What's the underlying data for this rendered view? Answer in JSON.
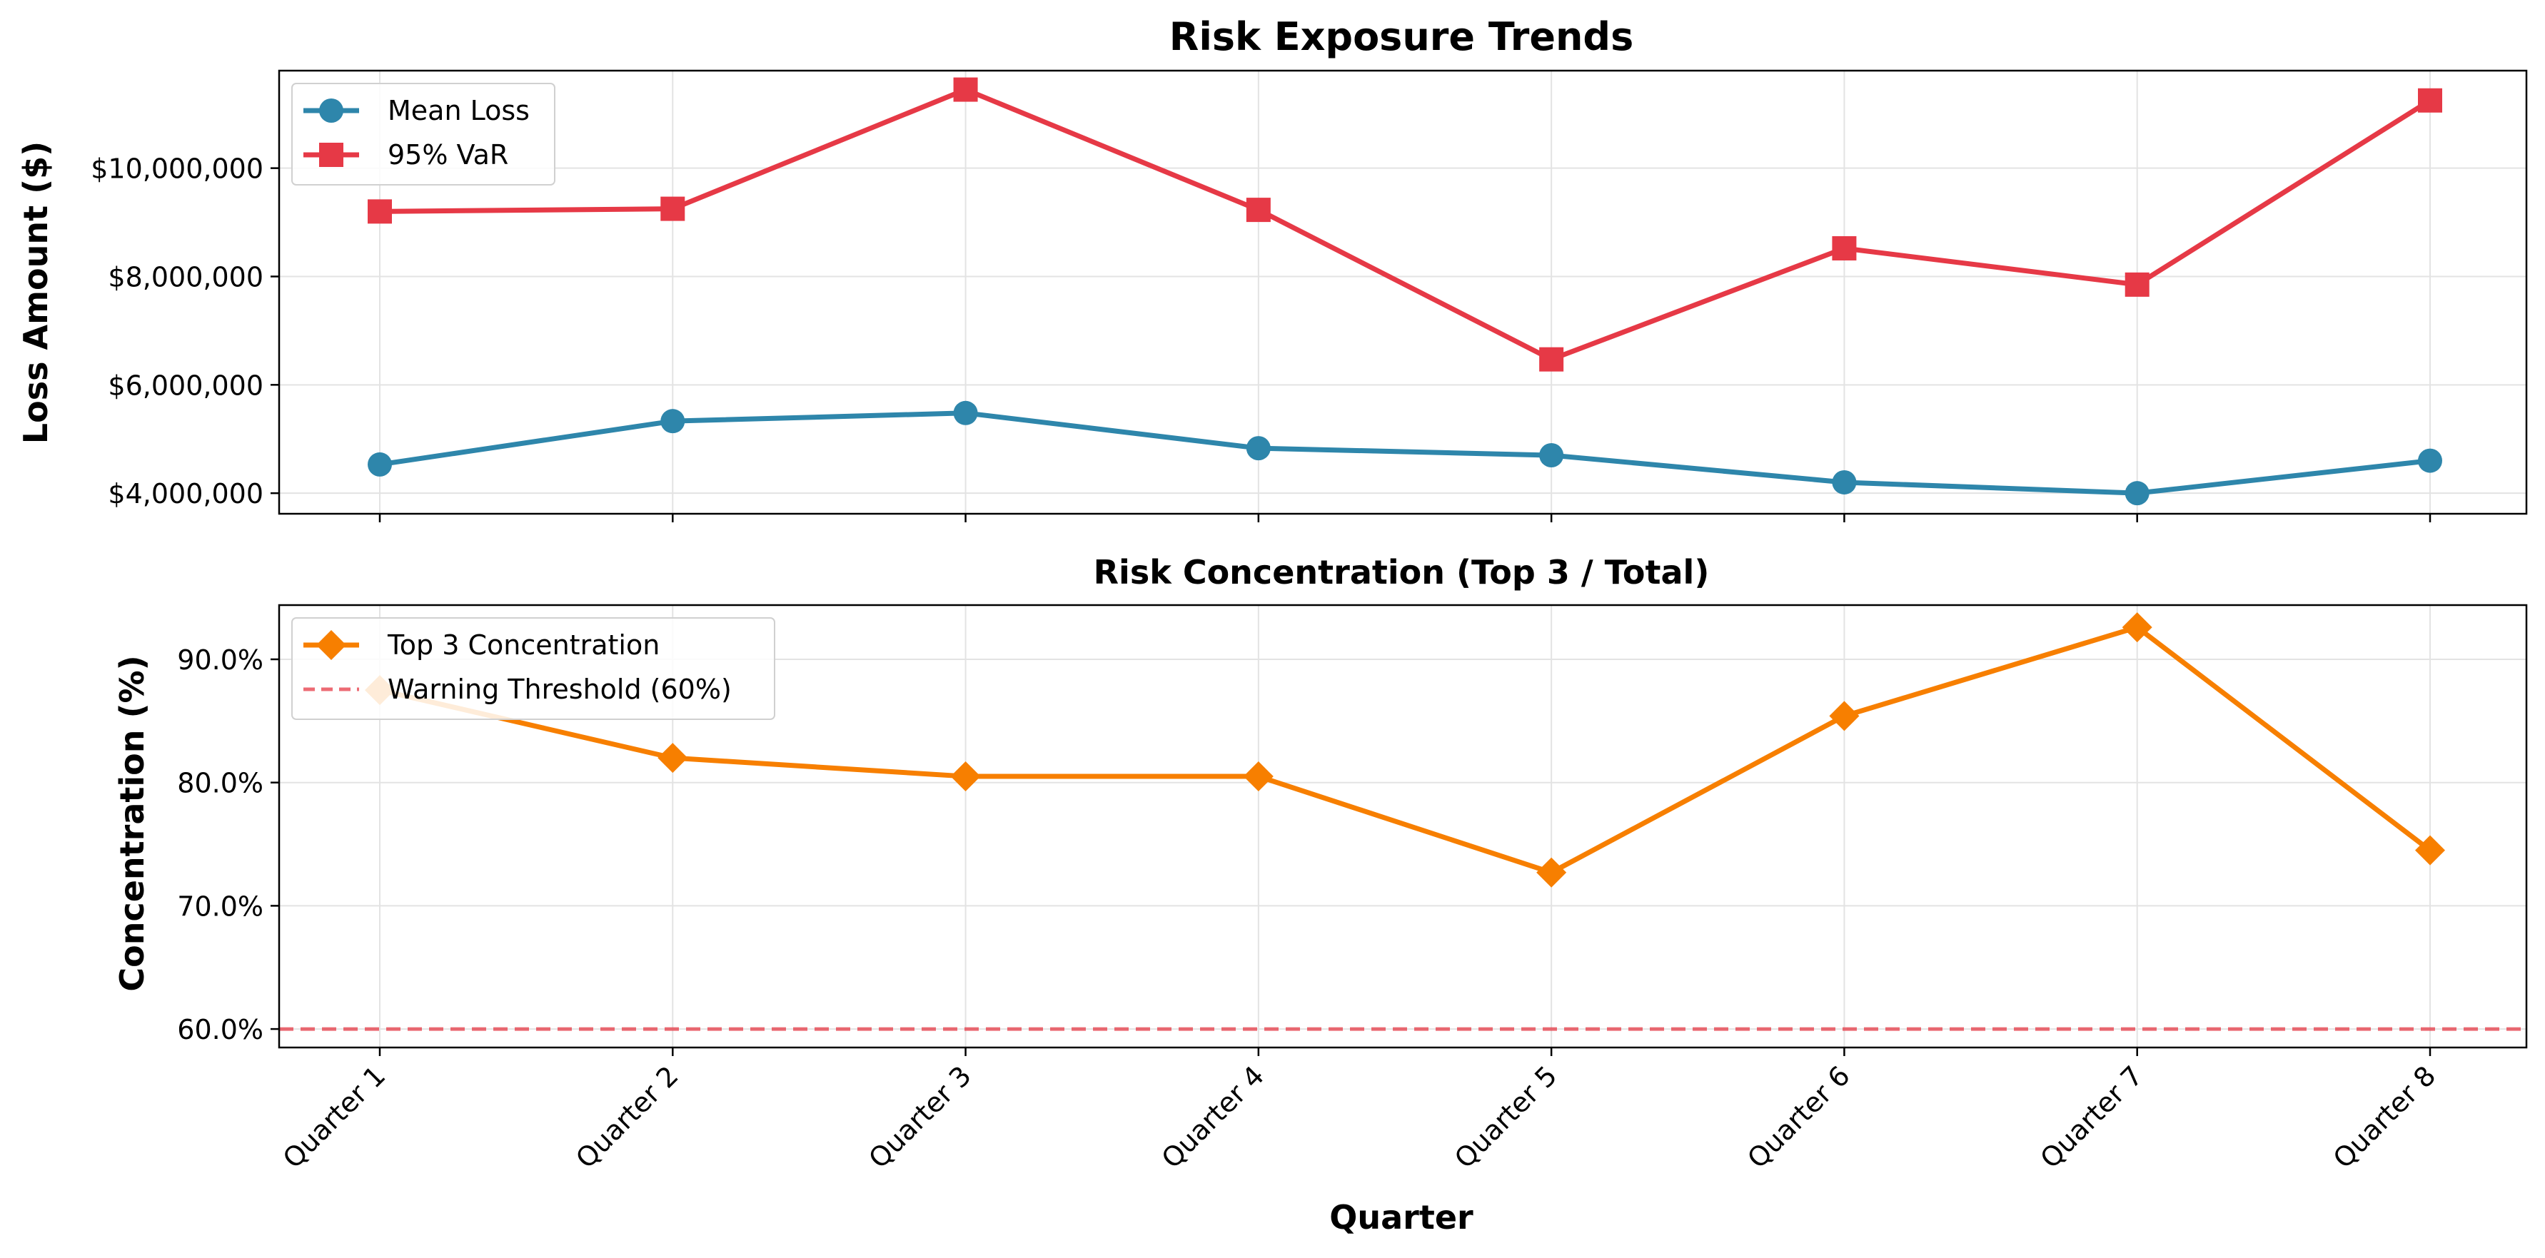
{
  "chart_data": [
    {
      "type": "line",
      "title": "Risk Exposure Trends",
      "xlabel": "",
      "ylabel": "Loss Amount ($)",
      "categories": [
        "Quarter 1",
        "Quarter 2",
        "Quarter 3",
        "Quarter 4",
        "Quarter 5",
        "Quarter 6",
        "Quarter 7",
        "Quarter 8"
      ],
      "ylim": [
        3620000,
        11800000
      ],
      "yticks": [
        4000000,
        6000000,
        8000000,
        10000000
      ],
      "ytick_labels": [
        "$4,000,000",
        "$6,000,000",
        "$8,000,000",
        "$10,000,000"
      ],
      "grid": true,
      "legend": "top-left",
      "series": [
        {
          "name": "Mean Loss",
          "color": "#2e86ab",
          "marker": "circle",
          "values": [
            4530000,
            5330000,
            5480000,
            4830000,
            4700000,
            4200000,
            4000000,
            4600000
          ]
        },
        {
          "name": "95% VaR",
          "color": "#e63946",
          "marker": "square",
          "values": [
            9200000,
            9250000,
            11450000,
            9230000,
            6470000,
            8520000,
            7850000,
            11250000
          ]
        }
      ]
    },
    {
      "type": "line",
      "title": "Risk Concentration (Top 3 / Total)",
      "xlabel": "Quarter",
      "ylabel": "Concentration (%)",
      "categories": [
        "Quarter 1",
        "Quarter 2",
        "Quarter 3",
        "Quarter 4",
        "Quarter 5",
        "Quarter 6",
        "Quarter 7",
        "Quarter 8"
      ],
      "ylim": [
        58.5,
        94.4
      ],
      "yticks": [
        60,
        70,
        80,
        90
      ],
      "ytick_labels": [
        "60.0%",
        "70.0%",
        "80.0%",
        "90.0%"
      ],
      "grid": true,
      "legend": "top-left",
      "series": [
        {
          "name": "Top 3 Concentration",
          "color": "#f77f00",
          "marker": "diamond",
          "values": [
            87.5,
            82.0,
            80.5,
            80.5,
            72.7,
            85.4,
            92.6,
            74.5
          ]
        }
      ],
      "reference_lines": [
        {
          "name": "Warning Threshold (60%)",
          "value": 60,
          "color": "#e63946",
          "style": "dashed"
        }
      ]
    }
  ]
}
